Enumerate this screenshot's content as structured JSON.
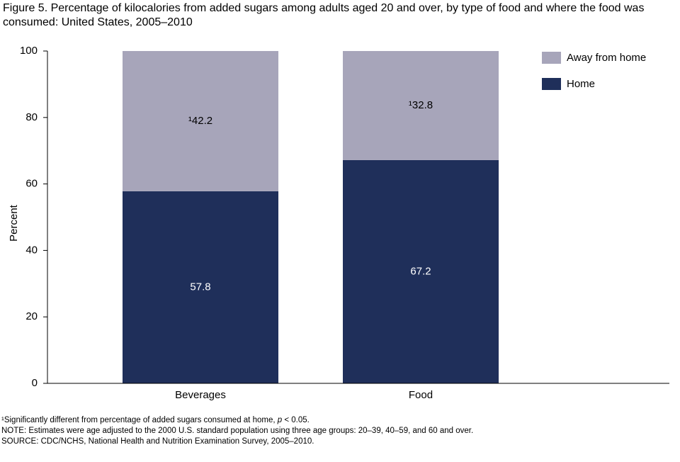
{
  "chart_data": {
    "type": "stacked-bar",
    "title": "Figure 5. Percentage of kilocalories from added sugars among adults aged 20 and over, by type of food and where the food was consumed: United States, 2005–2010",
    "ylabel": "Percent",
    "categories": [
      "Beverages",
      "Food"
    ],
    "series": [
      {
        "name": "Home",
        "color": "#1f2f5a",
        "values": [
          57.8,
          67.2
        ]
      },
      {
        "name": "Away from home",
        "color": "#a7a5ba",
        "values": [
          42.2,
          32.8
        ],
        "value_labels": [
          "¹42.2",
          "¹32.8"
        ]
      }
    ],
    "ylim": [
      0,
      100
    ],
    "yticks": [
      0,
      20,
      40,
      60,
      80,
      100
    ],
    "footnotes": [
      [
        "¹Significantly different from percentage of added sugars consumed at home, ",
        "p",
        " < 0.05."
      ],
      "NOTE: Estimates were age adjusted to the 2000 U.S. standard population using three age groups: 20–39, 40–59, and 60 and over.",
      "SOURCE: CDC/NCHS, National Health and Nutrition Examination Survey, 2005–2010."
    ]
  }
}
